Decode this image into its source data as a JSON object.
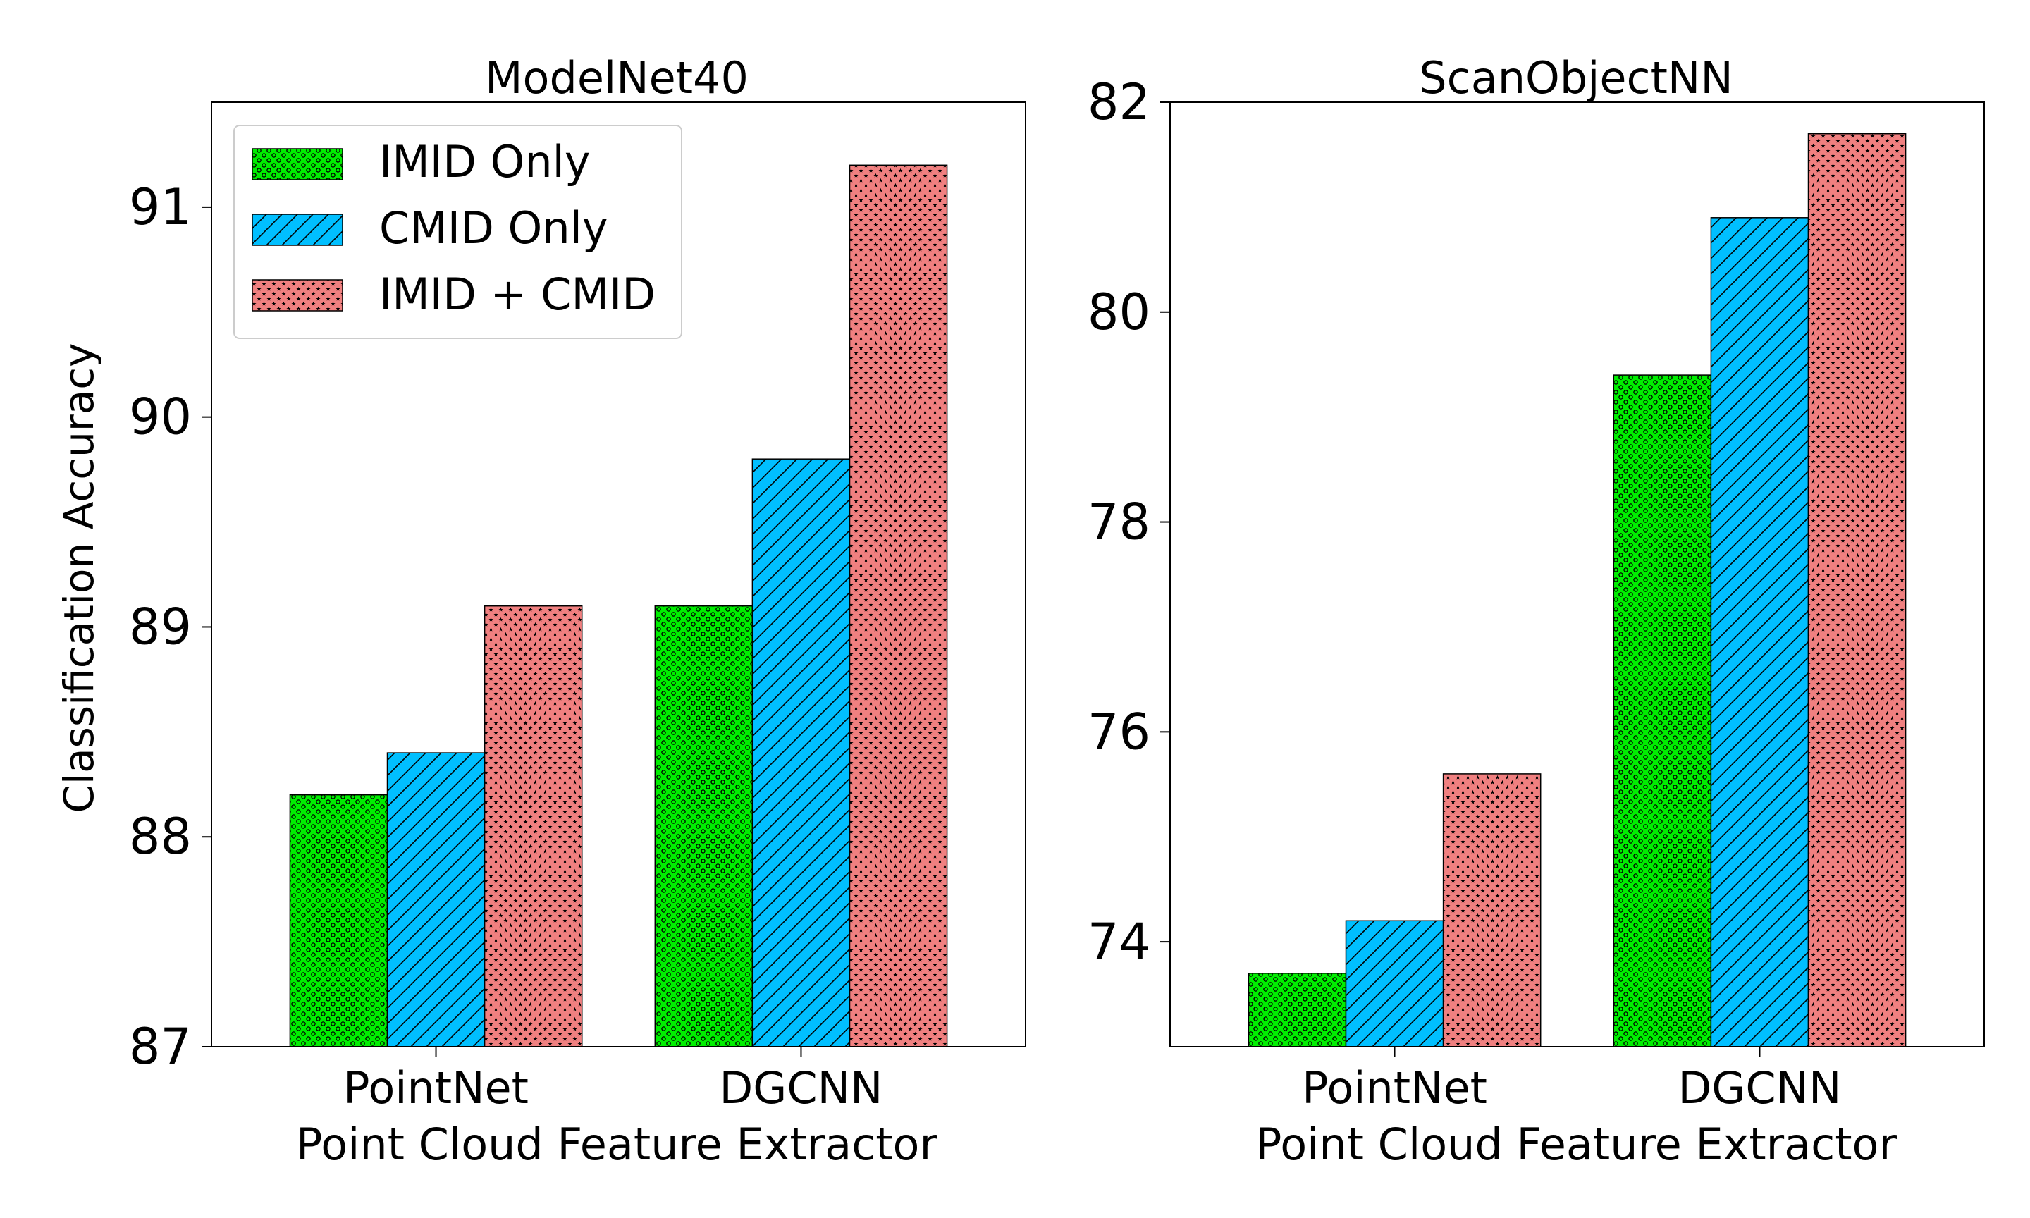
{
  "chart_data": [
    {
      "type": "bar",
      "title": "ModelNet40",
      "xlabel": "Point Cloud Feature Extractor",
      "ylabel": "Classification Accuracy",
      "categories": [
        "PointNet",
        "DGCNN"
      ],
      "ylim": [
        87,
        91.5
      ],
      "yticks": [
        87,
        88,
        89,
        90,
        91
      ],
      "grid": false,
      "legend": "top-left",
      "series": [
        {
          "name": "IMID Only",
          "values": [
            88.2,
            89.1
          ],
          "color": "#00ee00",
          "pattern": "dots"
        },
        {
          "name": "CMID Only",
          "values": [
            88.4,
            89.8
          ],
          "color": "#00bfff",
          "pattern": "hatch"
        },
        {
          "name": "IMID + CMID",
          "values": [
            89.1,
            91.2
          ],
          "color": "#f08080",
          "pattern": "stars"
        }
      ]
    },
    {
      "type": "bar",
      "title": "ScanObjectNN",
      "xlabel": "Point Cloud Feature Extractor",
      "ylabel": "",
      "categories": [
        "PointNet",
        "DGCNN"
      ],
      "ylim": [
        73,
        82
      ],
      "yticks": [
        74,
        76,
        78,
        80,
        82
      ],
      "grid": false,
      "legend": "none",
      "series": [
        {
          "name": "IMID Only",
          "values": [
            73.7,
            79.4
          ],
          "color": "#00ee00",
          "pattern": "dots"
        },
        {
          "name": "CMID Only",
          "values": [
            74.2,
            80.9
          ],
          "color": "#00bfff",
          "pattern": "hatch"
        },
        {
          "name": "IMID + CMID",
          "values": [
            75.6,
            81.7
          ],
          "color": "#f08080",
          "pattern": "stars"
        }
      ]
    }
  ]
}
